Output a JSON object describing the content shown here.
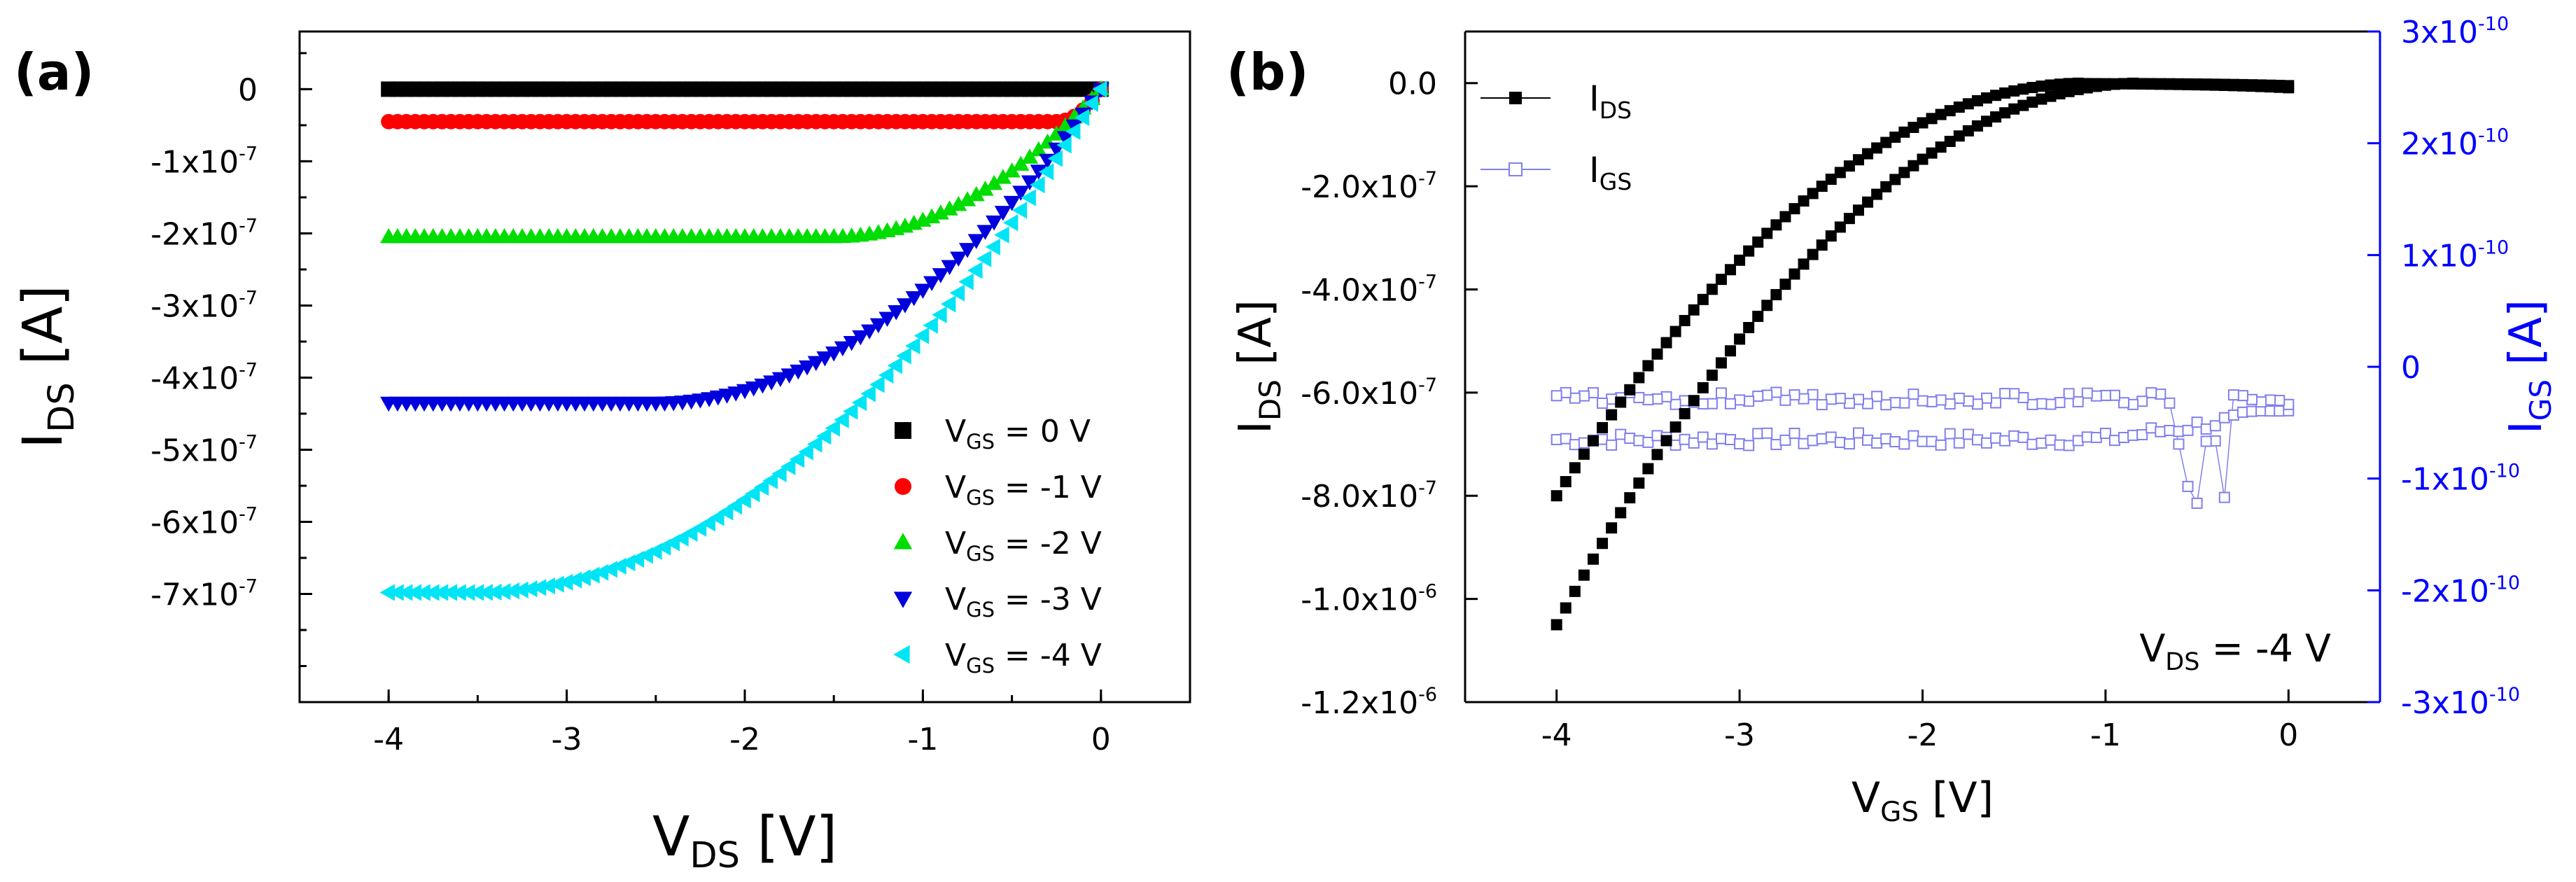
{
  "colors": {
    "axis": "#000000",
    "blue_axis": "#0000ff",
    "vgs0": "#000000",
    "vgs1": "#ff0000",
    "vgs2": "#00dd00",
    "vgs3": "#0000dd",
    "vgs4": "#00e5f5",
    "ids": "#000000",
    "igs": "#8080ee"
  },
  "chart_data": [
    {
      "panel": "(a)",
      "type": "scatter",
      "xlabel": {
        "main": "V",
        "sub": "DS",
        "rest": " [V]"
      },
      "ylabel": {
        "main": "I",
        "sub": "DS",
        "rest": " [A]"
      },
      "xlim": [
        -4.5,
        0.5
      ],
      "ylim": [
        -8.5e-07,
        8e-08
      ],
      "xticks": [
        -4,
        -3,
        -2,
        -1,
        0
      ],
      "xtick_labels": [
        "-4",
        "-3",
        "-2",
        "-1",
        "0"
      ],
      "yticks": [
        0,
        -1e-07,
        -2e-07,
        -3e-07,
        -4e-07,
        -5e-07,
        -6e-07,
        -7e-07
      ],
      "ytick_labels": [
        {
          "m": "0",
          "e": ""
        },
        {
          "m": "-1x10",
          "e": "-7"
        },
        {
          "m": "-2x10",
          "e": "-7"
        },
        {
          "m": "-3x10",
          "e": "-7"
        },
        {
          "m": "-4x10",
          "e": "-7"
        },
        {
          "m": "-5x10",
          "e": "-7"
        },
        {
          "m": "-6x10",
          "e": "-7"
        },
        {
          "m": "-7x10",
          "e": "-7"
        }
      ],
      "legend_position": "bottom-right",
      "series": [
        {
          "name": "VGS = 0 V",
          "label": {
            "main": "V",
            "sub": "GS",
            "rest": " = 0 V"
          },
          "marker": "square",
          "color_key": "vgs0",
          "isat": 0,
          "vsat": 1
        },
        {
          "name": "VGS = -1 V",
          "label": {
            "main": "V",
            "sub": "GS",
            "rest": " = -1 V"
          },
          "marker": "circle",
          "color_key": "vgs1",
          "isat": -4.5e-08,
          "vsat": 0.25
        },
        {
          "name": "VGS = -2 V",
          "label": {
            "main": "V",
            "sub": "GS",
            "rest": " = -2 V"
          },
          "marker": "triangle-up",
          "color_key": "vgs2",
          "isat": -2.05e-07,
          "vsat": 1.5
        },
        {
          "name": "VGS = -3 V",
          "label": {
            "main": "V",
            "sub": "GS",
            "rest": " = -3 V"
          },
          "marker": "triangle-down",
          "color_key": "vgs3",
          "isat": -4.35e-07,
          "vsat": 2.5
        },
        {
          "name": "VGS = -4 V",
          "label": {
            "main": "V",
            "sub": "GS",
            "rest": " = -4 V"
          },
          "marker": "triangle-left",
          "color_key": "vgs4",
          "isat": -6.98e-07,
          "vsat": 3.5
        }
      ]
    },
    {
      "panel": "(b)",
      "type": "scatter",
      "xlabel": {
        "main": "V",
        "sub": "GS",
        "rest": " [V]"
      },
      "ylabel": {
        "main": "I",
        "sub": "DS",
        "rest": " [A]"
      },
      "y2label": {
        "main": "I",
        "sub": "GS",
        "rest": " [A]"
      },
      "xlim": [
        -4.5,
        0.5
      ],
      "ylim": [
        -1.2e-06,
        1e-07
      ],
      "y2lim": [
        -3e-10,
        3e-10
      ],
      "xticks": [
        -4,
        -3,
        -2,
        -1,
        0
      ],
      "xtick_labels": [
        "-4",
        "-3",
        "-2",
        "-1",
        "0"
      ],
      "yticks": [
        0,
        -2e-07,
        -4e-07,
        -6e-07,
        -8e-07,
        -1e-06,
        -1.2e-06
      ],
      "ytick_labels": [
        {
          "m": "0.0",
          "e": ""
        },
        {
          "m": "-2.0x10",
          "e": "-7"
        },
        {
          "m": "-4.0x10",
          "e": "-7"
        },
        {
          "m": "-6.0x10",
          "e": "-7"
        },
        {
          "m": "-8.0x10",
          "e": "-7"
        },
        {
          "m": "-1.0x10",
          "e": "-6"
        },
        {
          "m": "-1.2x10",
          "e": "-6"
        }
      ],
      "y2ticks": [
        3e-10,
        2e-10,
        1e-10,
        0,
        -1e-10,
        -2e-10,
        -3e-10
      ],
      "y2tick_labels": [
        {
          "m": "3x10",
          "e": "-10"
        },
        {
          "m": "2x10",
          "e": "-10"
        },
        {
          "m": "1x10",
          "e": "-10"
        },
        {
          "m": "0",
          "e": ""
        },
        {
          "m": "-1x10",
          "e": "-10"
        },
        {
          "m": "-2x10",
          "e": "-10"
        },
        {
          "m": "-3x10",
          "e": "-10"
        }
      ],
      "annotation": {
        "main": "V",
        "sub": "DS",
        "rest": " = -4 V"
      },
      "legend_position": "top-left",
      "series": [
        {
          "name": "IDS",
          "label": {
            "main": "I",
            "sub": "DS",
            "rest": ""
          },
          "marker": "filled-square",
          "color_key": "ids",
          "axis": "left",
          "forward": {
            "x_start": -4,
            "x_end": 0,
            "y_at_start": -1.05e-06,
            "vth": -0.8
          },
          "reverse": {
            "x_start": 0,
            "x_end": -4,
            "y_at_end": -8e-07,
            "vth": -1.1
          }
        },
        {
          "name": "IGS",
          "label": {
            "main": "I",
            "sub": "GS",
            "rest": ""
          },
          "marker": "open-square",
          "color_key": "igs",
          "axis": "right",
          "upper_level": -2.8e-11,
          "lower_level": -6.5e-11
        }
      ]
    }
  ]
}
